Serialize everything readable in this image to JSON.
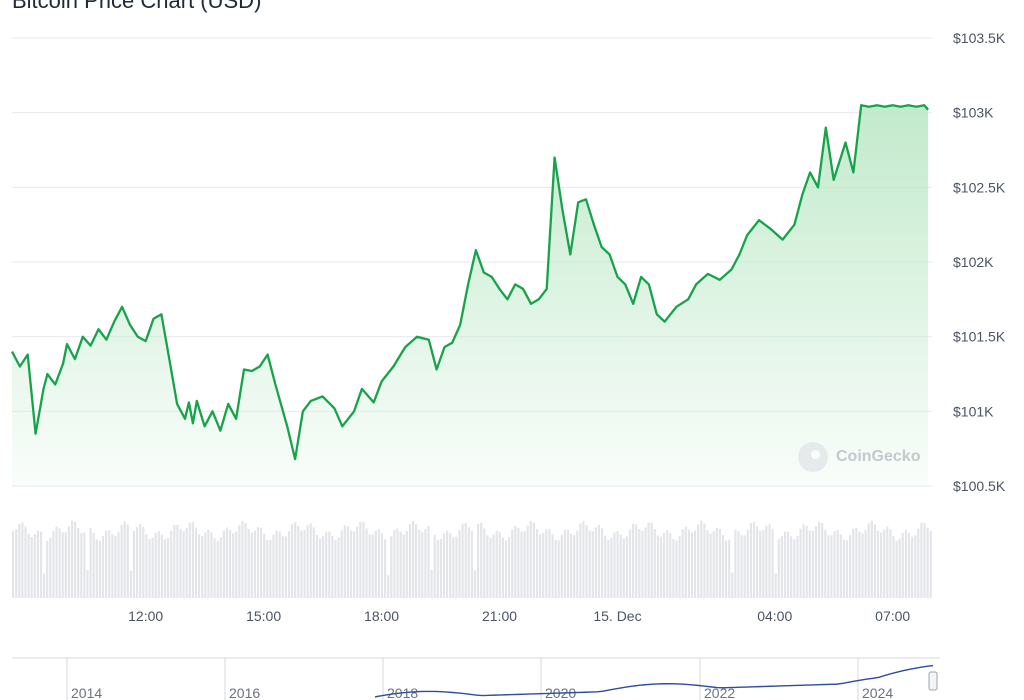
{
  "title": "Bitcoin Price Chart (USD)",
  "watermark": "CoinGecko",
  "colors": {
    "line": "#16a34a",
    "fill_top": "#bfe9c9",
    "grid": "#e8eaed",
    "volume": "#e3e5e9",
    "nav_line": "#2f4d9e",
    "axis_text": "#4b5563"
  },
  "chart_data": [
    {
      "type": "area",
      "title": "Bitcoin Price Chart (USD)",
      "y_ticks": [
        "$103.5K",
        "$103K",
        "$102.5K",
        "$102K",
        "$101.5K",
        "$101K",
        "$100.5K"
      ],
      "y_tick_values": [
        103500,
        103000,
        102500,
        102000,
        101500,
        101000,
        100500
      ],
      "ylim": [
        100500,
        103500
      ],
      "x_ticks": [
        "12:00",
        "15:00",
        "18:00",
        "21:00",
        "15. Dec",
        "04:00",
        "07:00"
      ],
      "x_tick_hours": [
        12,
        15,
        18,
        21,
        24,
        28,
        31
      ],
      "xlim_hours": [
        8.6,
        32.0
      ],
      "grid": true,
      "series": [
        {
          "x_hours": [
            8.6,
            8.8,
            9.0,
            9.2,
            9.4,
            9.5,
            9.7,
            9.9,
            10.0,
            10.2,
            10.4,
            10.6,
            10.8,
            11.0,
            11.2,
            11.4,
            11.6,
            11.8,
            12.0,
            12.2,
            12.4,
            12.6,
            12.8,
            13.0,
            13.1,
            13.2,
            13.3,
            13.5,
            13.7,
            13.9,
            14.1,
            14.3,
            14.5,
            14.7,
            14.9,
            15.1,
            15.3,
            15.6,
            15.8,
            16.0,
            16.2,
            16.5,
            16.8,
            17.0,
            17.3,
            17.5,
            17.8,
            18.0,
            18.3,
            18.6,
            18.9,
            19.2,
            19.4,
            19.6,
            19.8,
            20.0,
            20.2,
            20.4,
            20.6,
            20.8,
            21.0,
            21.2,
            21.4,
            21.6,
            21.8,
            22.0,
            22.2,
            22.4,
            22.6,
            22.8,
            23.0,
            23.2,
            23.4,
            23.6,
            23.8,
            24.0,
            24.2,
            24.4,
            24.6,
            24.8,
            25.0,
            25.2,
            25.5,
            25.8,
            26.0,
            26.3,
            26.6,
            26.9,
            27.1,
            27.3,
            27.6,
            27.9,
            28.2,
            28.5,
            28.7,
            28.9,
            29.1,
            29.3,
            29.5,
            29.8,
            30.0,
            30.2,
            30.4,
            30.6,
            30.8,
            31.0,
            31.2,
            31.4,
            31.6,
            31.8,
            31.9
          ],
          "y": [
            101400,
            101300,
            101380,
            100850,
            101150,
            101250,
            101180,
            101320,
            101450,
            101350,
            101500,
            101440,
            101550,
            101480,
            101600,
            101700,
            101580,
            101500,
            101470,
            101620,
            101650,
            101350,
            101050,
            100950,
            101060,
            100920,
            101070,
            100900,
            101000,
            100870,
            101050,
            100950,
            101280,
            101270,
            101300,
            101380,
            101180,
            100900,
            100680,
            101000,
            101070,
            101100,
            101020,
            100900,
            101000,
            101150,
            101060,
            101200,
            101300,
            101430,
            101500,
            101480,
            101280,
            101430,
            101460,
            101580,
            101850,
            102080,
            101930,
            101900,
            101820,
            101750,
            101850,
            101820,
            101720,
            101750,
            101820,
            102700,
            102350,
            102050,
            102400,
            102420,
            102250,
            102100,
            102050,
            101900,
            101850,
            101720,
            101900,
            101850,
            101650,
            101600,
            101700,
            101750,
            101850,
            101920,
            101880,
            101950,
            102050,
            102180,
            102280,
            102220,
            102150,
            102250,
            102450,
            102600,
            102500,
            102900,
            102550,
            102800,
            102600,
            103050,
            103040,
            103050,
            103040,
            103050,
            103040,
            103050,
            103040,
            103050,
            103020
          ]
        }
      ]
    },
    {
      "type": "bar",
      "title": "Volume"
    },
    {
      "type": "line",
      "title": "Navigator",
      "x_ticks": [
        "2014",
        "2016",
        "2018",
        "2020",
        "2022",
        "2024"
      ]
    }
  ]
}
